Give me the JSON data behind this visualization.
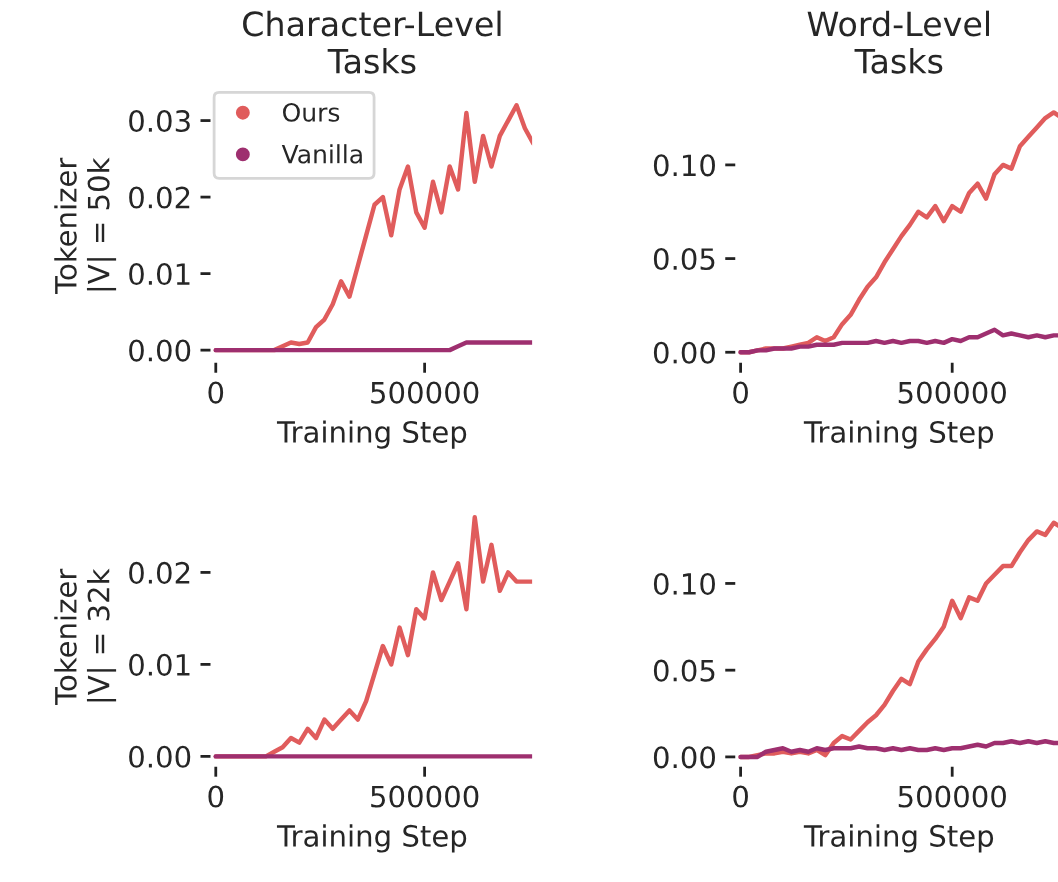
{
  "chart_data": [
    {
      "type": "line",
      "title": "Character-Level\nTasks",
      "ylabel": "Tokenizer\n|V| = 50k",
      "xlabel": "Training Step",
      "x": [
        0,
        20000,
        40000,
        60000,
        80000,
        100000,
        120000,
        140000,
        160000,
        180000,
        200000,
        220000,
        240000,
        260000,
        280000,
        300000,
        320000,
        340000,
        360000,
        380000,
        400000,
        420000,
        440000,
        460000,
        480000,
        500000,
        520000,
        540000,
        560000,
        580000,
        600000,
        620000,
        640000,
        660000,
        680000,
        700000,
        720000,
        740000,
        760000
      ],
      "xlim": [
        -10000,
        760000
      ],
      "xticks": [
        0,
        500000
      ],
      "ylim": [
        -0.0015,
        0.034
      ],
      "yticks": [
        {
          "value": 0,
          "label": "0.00"
        },
        {
          "value": 0.01,
          "label": "0.01"
        },
        {
          "value": 0.02,
          "label": "0.02"
        },
        {
          "value": 0.03,
          "label": "0.03"
        }
      ],
      "grid": false,
      "legend": "top left",
      "marker": "none",
      "line_style": "solid",
      "series": [
        {
          "name": "Ours",
          "color": "#e05c5c",
          "values": [
            0,
            0,
            0,
            0,
            0,
            0,
            0,
            0,
            0.0005,
            0.001,
            0.0008,
            0.001,
            0.003,
            0.004,
            0.006,
            0.009,
            0.007,
            0.011,
            0.015,
            0.019,
            0.02,
            0.015,
            0.021,
            0.024,
            0.018,
            0.016,
            0.022,
            0.018,
            0.024,
            0.021,
            0.031,
            0.022,
            0.028,
            0.024,
            0.028,
            0.03,
            0.032,
            0.029,
            0.027
          ]
        },
        {
          "name": "Vanilla",
          "color": "#9e2f6f",
          "values": [
            0,
            0,
            0,
            0,
            0,
            0,
            0,
            0,
            0,
            0,
            0,
            0,
            0,
            0,
            0,
            0,
            0,
            0,
            0,
            0,
            0,
            0,
            0,
            0,
            0,
            0,
            0,
            0,
            0,
            0.0005,
            0.001,
            0.001,
            0.001,
            0.001,
            0.001,
            0.001,
            0.001,
            0.001,
            0.001
          ]
        }
      ]
    },
    {
      "type": "line",
      "title": "Word-Level\nTasks",
      "xlabel": "Training Step",
      "x": [
        0,
        20000,
        40000,
        60000,
        80000,
        100000,
        120000,
        140000,
        160000,
        180000,
        200000,
        220000,
        240000,
        260000,
        280000,
        300000,
        320000,
        340000,
        360000,
        380000,
        400000,
        420000,
        440000,
        460000,
        480000,
        500000,
        520000,
        540000,
        560000,
        580000,
        600000,
        620000,
        640000,
        660000,
        680000,
        700000,
        720000,
        740000,
        760000
      ],
      "xlim": [
        -10000,
        760000
      ],
      "xticks": [
        0,
        500000
      ],
      "ylim": [
        -0.005,
        0.14
      ],
      "yticks": [
        {
          "value": 0,
          "label": "0.00"
        },
        {
          "value": 0.05,
          "label": "0.05"
        },
        {
          "value": 0.1,
          "label": "0.10"
        }
      ],
      "grid": false,
      "marker": "none",
      "line_style": "solid",
      "series": [
        {
          "color": "#e05c5c",
          "values": [
            0,
            0,
            0.001,
            0.002,
            0.002,
            0.002,
            0.003,
            0.004,
            0.005,
            0.008,
            0.006,
            0.008,
            0.015,
            0.02,
            0.028,
            0.035,
            0.04,
            0.048,
            0.055,
            0.062,
            0.068,
            0.075,
            0.072,
            0.078,
            0.07,
            0.078,
            0.075,
            0.085,
            0.09,
            0.082,
            0.095,
            0.1,
            0.098,
            0.11,
            0.115,
            0.12,
            0.125,
            0.128,
            0.125
          ]
        },
        {
          "color": "#9e2f6f",
          "values": [
            0,
            0,
            0.001,
            0.001,
            0.002,
            0.002,
            0.002,
            0.003,
            0.003,
            0.004,
            0.004,
            0.004,
            0.005,
            0.005,
            0.005,
            0.005,
            0.006,
            0.005,
            0.006,
            0.005,
            0.006,
            0.006,
            0.005,
            0.006,
            0.005,
            0.007,
            0.006,
            0.008,
            0.008,
            0.01,
            0.012,
            0.009,
            0.01,
            0.009,
            0.008,
            0.009,
            0.008,
            0.009,
            0.009
          ]
        }
      ]
    },
    {
      "type": "line",
      "ylabel": "Tokenizer\n|V| = 32k",
      "xlabel": "Training Step",
      "x": [
        0,
        20000,
        40000,
        60000,
        80000,
        100000,
        120000,
        140000,
        160000,
        180000,
        200000,
        220000,
        240000,
        260000,
        280000,
        300000,
        320000,
        340000,
        360000,
        380000,
        400000,
        420000,
        440000,
        460000,
        480000,
        500000,
        520000,
        540000,
        560000,
        580000,
        600000,
        620000,
        640000,
        660000,
        680000,
        700000,
        720000,
        740000,
        760000
      ],
      "xlim": [
        -10000,
        760000
      ],
      "xticks": [
        0,
        500000
      ],
      "ylim": [
        -0.001,
        0.027
      ],
      "yticks": [
        {
          "value": 0,
          "label": "0.00"
        },
        {
          "value": 0.01,
          "label": "0.01"
        },
        {
          "value": 0.02,
          "label": "0.02"
        }
      ],
      "grid": false,
      "marker": "none",
      "line_style": "solid",
      "series": [
        {
          "color": "#e05c5c",
          "values": [
            0,
            0,
            0,
            0,
            0,
            0,
            0,
            0.0005,
            0.001,
            0.002,
            0.0015,
            0.003,
            0.002,
            0.004,
            0.003,
            0.004,
            0.005,
            0.004,
            0.006,
            0.009,
            0.012,
            0.01,
            0.014,
            0.011,
            0.016,
            0.015,
            0.02,
            0.017,
            0.019,
            0.021,
            0.016,
            0.026,
            0.019,
            0.023,
            0.018,
            0.02,
            0.019,
            0.019,
            0.019
          ]
        },
        {
          "color": "#9e2f6f",
          "values": [
            0,
            0,
            0,
            0,
            0,
            0,
            0,
            0,
            0,
            0,
            0,
            0,
            0,
            0,
            0,
            0,
            0,
            0,
            0,
            0,
            0,
            0,
            0,
            0,
            0,
            0,
            0,
            0,
            0,
            0,
            0,
            0,
            0,
            0,
            0,
            0,
            0,
            0,
            0
          ]
        }
      ]
    },
    {
      "type": "line",
      "xlabel": "Training Step",
      "x": [
        0,
        20000,
        40000,
        60000,
        80000,
        100000,
        120000,
        140000,
        160000,
        180000,
        200000,
        220000,
        240000,
        260000,
        280000,
        300000,
        320000,
        340000,
        360000,
        380000,
        400000,
        420000,
        440000,
        460000,
        480000,
        500000,
        520000,
        540000,
        560000,
        580000,
        600000,
        620000,
        640000,
        660000,
        680000,
        700000,
        720000,
        740000,
        760000
      ],
      "xlim": [
        -10000,
        760000
      ],
      "xticks": [
        0,
        500000
      ],
      "ylim": [
        -0.005,
        0.145
      ],
      "yticks": [
        {
          "value": 0,
          "label": "0.00"
        },
        {
          "value": 0.05,
          "label": "0.05"
        },
        {
          "value": 0.1,
          "label": "0.10"
        }
      ],
      "grid": false,
      "marker": "none",
      "line_style": "solid",
      "series": [
        {
          "color": "#e05c5c",
          "values": [
            0,
            0,
            0.001,
            0.002,
            0.002,
            0.003,
            0.002,
            0.003,
            0.002,
            0.004,
            0.001,
            0.008,
            0.012,
            0.01,
            0.015,
            0.02,
            0.024,
            0.03,
            0.038,
            0.045,
            0.042,
            0.055,
            0.062,
            0.068,
            0.075,
            0.09,
            0.08,
            0.092,
            0.09,
            0.1,
            0.105,
            0.11,
            0.11,
            0.118,
            0.125,
            0.13,
            0.128,
            0.135,
            0.132
          ]
        },
        {
          "color": "#9e2f6f",
          "values": [
            0,
            0,
            0,
            0.003,
            0.004,
            0.005,
            0.003,
            0.004,
            0.003,
            0.005,
            0.004,
            0.005,
            0.005,
            0.005,
            0.006,
            0.005,
            0.005,
            0.004,
            0.005,
            0.004,
            0.005,
            0.004,
            0.004,
            0.005,
            0.004,
            0.005,
            0.005,
            0.006,
            0.007,
            0.006,
            0.008,
            0.008,
            0.009,
            0.008,
            0.009,
            0.008,
            0.009,
            0.008,
            0.008
          ]
        }
      ]
    }
  ]
}
